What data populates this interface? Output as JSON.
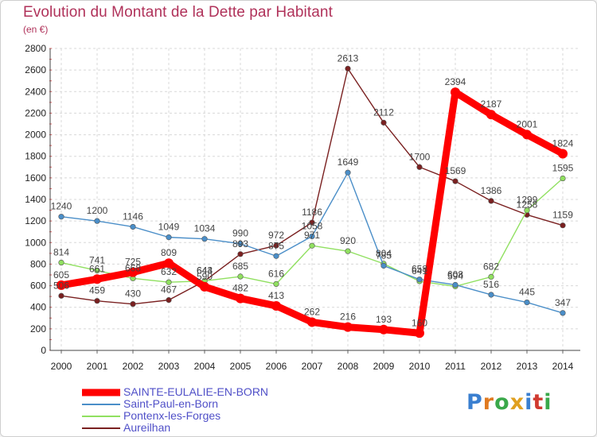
{
  "header": {
    "title": "Evolution du Montant de la Dette par Habitant",
    "subtitle": "(en €)"
  },
  "logo": {
    "text": "Proxiti",
    "colors": [
      "#3a7fd0",
      "#e07a20",
      "#3aa84a",
      "#e0a020",
      "#3a7fd0",
      "#d03a30",
      "#3aa84a"
    ]
  },
  "chart_data": {
    "type": "line",
    "x": [
      "2000",
      "2001",
      "2002",
      "2003",
      "2004",
      "2005",
      "2006",
      "2007",
      "2008",
      "2009",
      "2010",
      "2011",
      "2012",
      "2013",
      "2014"
    ],
    "ylim": [
      0,
      2800
    ],
    "yticks": [
      0,
      200,
      400,
      600,
      800,
      1000,
      1200,
      1400,
      1600,
      1800,
      2000,
      2200,
      2400,
      2600,
      2800
    ],
    "grid": true,
    "legend_position": "bottom-left",
    "series": [
      {
        "name": "SAINTE-EULALIE-EN-BORN",
        "color": "#ff0000",
        "values": [
          605,
          661,
          725,
          809,
          590,
          482,
          413,
          262,
          216,
          193,
          160,
          2394,
          2187,
          2001,
          1824
        ]
      },
      {
        "name": "Saint-Paul-en-Born",
        "color": "#4a8ec8",
        "values": [
          1240,
          1200,
          1146,
          1049,
          1034,
          990,
          875,
          1058,
          1649,
          785,
          658,
          608,
          516,
          445,
          347
        ]
      },
      {
        "name": "Pontenx-les-Forges",
        "color": "#90e060",
        "values": [
          814,
          741,
          668,
          632,
          644,
          685,
          616,
          971,
          920,
          804,
          641,
          594,
          682,
          1299,
          1595
        ]
      },
      {
        "name": "Aureilhan",
        "color": "#7a2020",
        "values": [
          506,
          459,
          430,
          467,
          643,
          893,
          972,
          1186,
          2613,
          2112,
          1700,
          1569,
          1386,
          1258,
          1159
        ]
      }
    ]
  }
}
